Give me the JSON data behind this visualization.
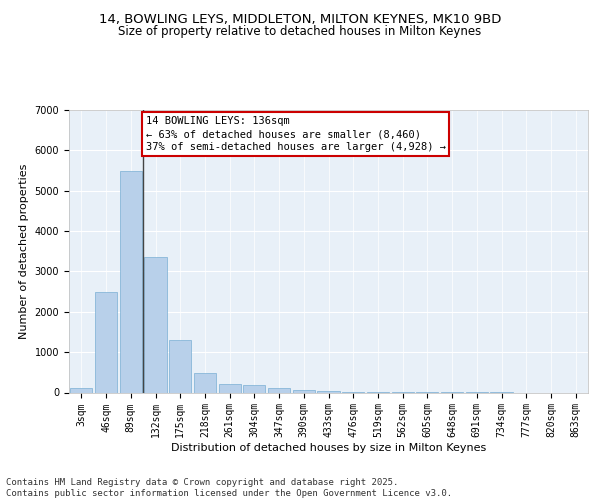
{
  "title_line1": "14, BOWLING LEYS, MIDDLETON, MILTON KEYNES, MK10 9BD",
  "title_line2": "Size of property relative to detached houses in Milton Keynes",
  "xlabel": "Distribution of detached houses by size in Milton Keynes",
  "ylabel": "Number of detached properties",
  "bar_color": "#b8d0ea",
  "bar_edge_color": "#7aafd4",
  "background_color": "#e8f0f8",
  "grid_color": "#ffffff",
  "categories": [
    "3sqm",
    "46sqm",
    "89sqm",
    "132sqm",
    "175sqm",
    "218sqm",
    "261sqm",
    "304sqm",
    "347sqm",
    "390sqm",
    "433sqm",
    "476sqm",
    "519sqm",
    "562sqm",
    "605sqm",
    "648sqm",
    "691sqm",
    "734sqm",
    "777sqm",
    "820sqm",
    "863sqm"
  ],
  "values": [
    100,
    2500,
    5500,
    3350,
    1300,
    480,
    210,
    195,
    100,
    65,
    35,
    10,
    5,
    3,
    2,
    1,
    1,
    1,
    0,
    0,
    0
  ],
  "ylim": [
    0,
    7000
  ],
  "yticks": [
    0,
    1000,
    2000,
    3000,
    4000,
    5000,
    6000,
    7000
  ],
  "annotation_text": "14 BOWLING LEYS: 136sqm\n← 63% of detached houses are smaller (8,460)\n37% of semi-detached houses are larger (4,928) →",
  "vline_x": 2.5,
  "vline_color": "#444444",
  "annotation_box_facecolor": "#ffffff",
  "annotation_box_edgecolor": "#cc0000",
  "footer_text": "Contains HM Land Registry data © Crown copyright and database right 2025.\nContains public sector information licensed under the Open Government Licence v3.0.",
  "title_fontsize": 9.5,
  "subtitle_fontsize": 8.5,
  "axis_label_fontsize": 8,
  "tick_fontsize": 7,
  "annotation_fontsize": 7.5,
  "footer_fontsize": 6.5
}
